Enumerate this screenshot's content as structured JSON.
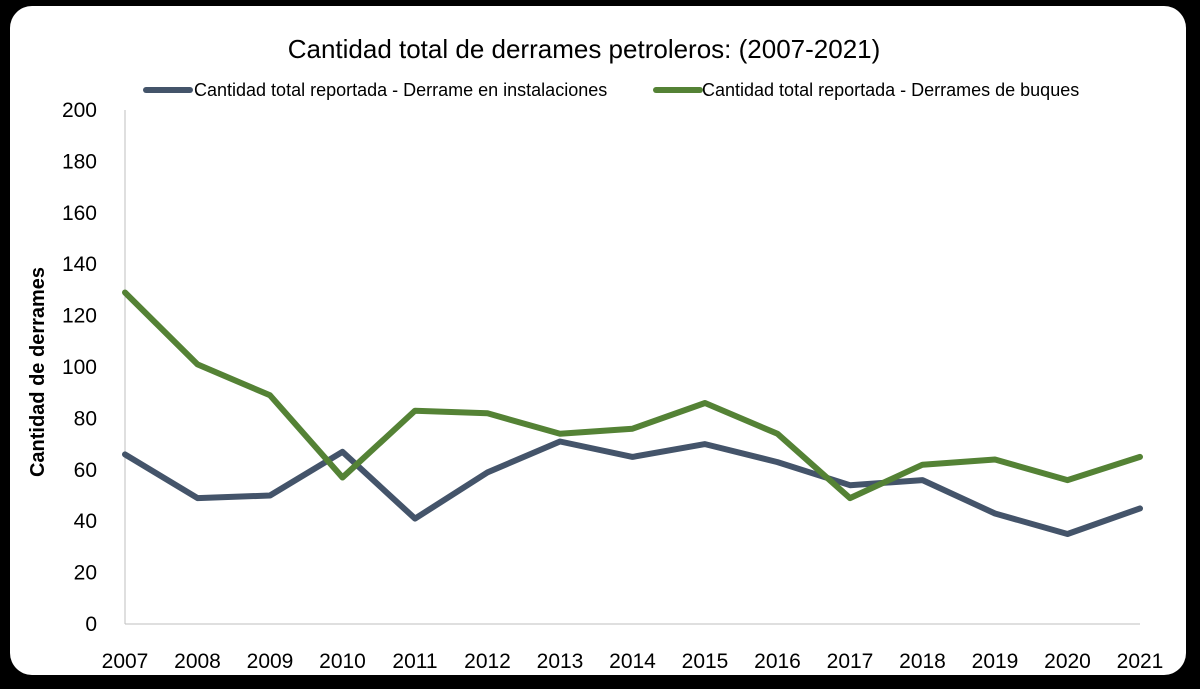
{
  "chart_data": {
    "type": "line",
    "title": "Cantidad total de derrames petroleros: (2007-2021)",
    "xlabel": "",
    "ylabel": "Cantidad de derrames",
    "ylim": [
      0,
      200
    ],
    "y_ticks": [
      "0",
      "20",
      "40",
      "60",
      "80",
      "100",
      "120",
      "140",
      "160",
      "180",
      "200"
    ],
    "grid": false,
    "legend_position": "top",
    "categories": [
      "2007",
      "2008",
      "2009",
      "2010",
      "2011",
      "2012",
      "2013",
      "2014",
      "2015",
      "2016",
      "2017",
      "2018",
      "2019",
      "2020",
      "2021"
    ],
    "series": [
      {
        "name": "Cantidad total reportada - Derrame en instalaciones",
        "color": "#44546a",
        "values": [
          66,
          49,
          50,
          67,
          41,
          59,
          71,
          65,
          70,
          63,
          54,
          56,
          43,
          35,
          45
        ]
      },
      {
        "name": "Cantidad total reportada - Derrames de buques",
        "color": "#548235",
        "values": [
          129,
          101,
          89,
          57,
          83,
          82,
          74,
          76,
          86,
          74,
          49,
          62,
          64,
          56,
          65
        ]
      }
    ]
  }
}
